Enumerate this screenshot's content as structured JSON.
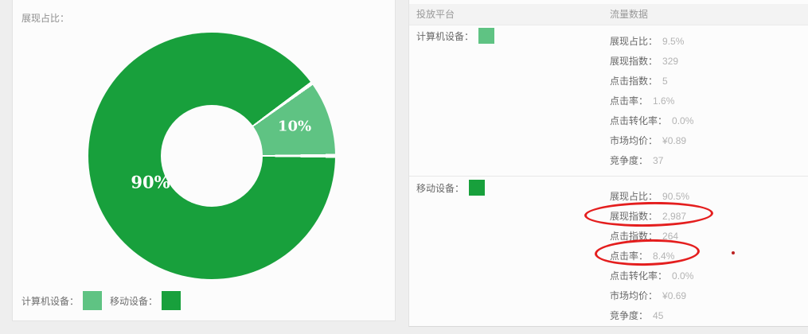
{
  "colors": {
    "mobile_green": "#18A03C",
    "computer_green": "#5FC383",
    "annotation_red": "#E41E1E"
  },
  "left_panel": {
    "title": "展现占比：",
    "slice_labels": {
      "mobile": "90%",
      "computer": "10%"
    },
    "legend": [
      {
        "label": "计算机设备：",
        "color": "#5FC383"
      },
      {
        "label": "移动设备：",
        "color": "#18A03C"
      }
    ]
  },
  "table": {
    "headers": {
      "platform": "投放平台",
      "traffic": "流量数据"
    },
    "sections": [
      {
        "platform": "计算机设备：",
        "swatch_color": "#5FC383",
        "rows": [
          {
            "label": "展现占比：",
            "value": "9.5%"
          },
          {
            "label": "展现指数：",
            "value": "329"
          },
          {
            "label": "点击指数：",
            "value": "5"
          },
          {
            "label": "点击率：",
            "value": "1.6%"
          },
          {
            "label": "点击转化率：",
            "value": "0.0%"
          },
          {
            "label": "市场均价：",
            "value": "¥0.89"
          },
          {
            "label": "竞争度：",
            "value": "37"
          }
        ]
      },
      {
        "platform": "移动设备：",
        "swatch_color": "#18A03C",
        "rows": [
          {
            "label": "展现占比：",
            "value": "90.5%"
          },
          {
            "label": "展现指数：",
            "value": "2,987",
            "annotated": true
          },
          {
            "label": "点击指数：",
            "value": "264"
          },
          {
            "label": "点击率：",
            "value": "8.4%",
            "annotated": true
          },
          {
            "label": "点击转化率：",
            "value": "0.0%"
          },
          {
            "label": "市场均价：",
            "value": "¥0.69"
          },
          {
            "label": "竞争度：",
            "value": "45"
          }
        ]
      }
    ]
  },
  "annotations": [
    {
      "type": "ellipse",
      "target": "移动设备 展现指数 2,987"
    },
    {
      "type": "ellipse",
      "target": "移动设备 点击率 8.4%"
    },
    {
      "type": "dot",
      "target": "right of 点击率 row"
    }
  ],
  "chart_data": {
    "type": "pie",
    "donut": true,
    "title": "展现占比",
    "categories": [
      "移动设备",
      "计算机设备"
    ],
    "values": [
      90,
      10
    ],
    "unit": "%",
    "colors": [
      "#18A03C",
      "#5FC383"
    ],
    "data_labels": [
      "90%",
      "10%"
    ],
    "inner_radius_ratio": 0.41,
    "start_angle_deg": 0,
    "legend_position": "bottom-left"
  }
}
